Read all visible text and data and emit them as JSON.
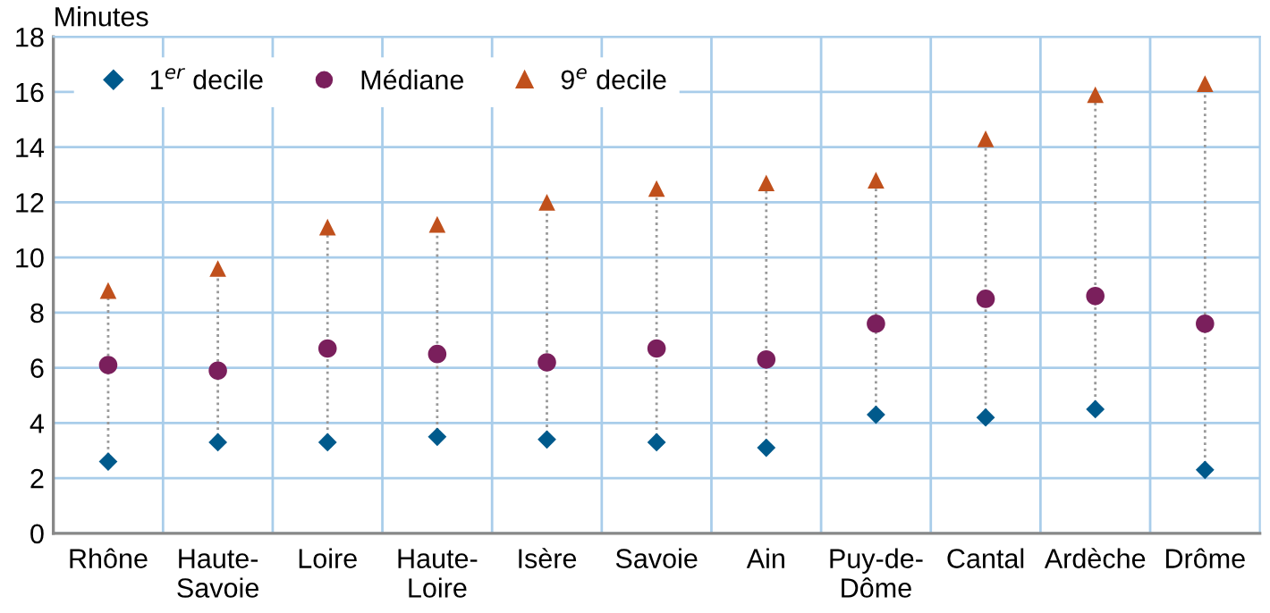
{
  "chart_data": {
    "type": "scatter",
    "ylabel": "Minutes",
    "categories": [
      "Rhône",
      "Haute-\nSavoie",
      "Loire",
      "Haute-\nLoire",
      "Isère",
      "Savoie",
      "Ain",
      "Puy-de-\nDôme",
      "Cantal",
      "Ardèche",
      "Drôme"
    ],
    "series": [
      {
        "name": "1$^{er}$ decile",
        "color": "#005a8c",
        "marker": "diamond",
        "values": [
          2.6,
          3.3,
          3.3,
          3.5,
          3.4,
          3.3,
          3.1,
          4.3,
          4.2,
          4.5,
          2.3
        ]
      },
      {
        "name": "Médiane",
        "color": "#7a1f5c",
        "marker": "circle",
        "values": [
          6.1,
          5.9,
          6.7,
          6.5,
          6.2,
          6.7,
          6.3,
          7.6,
          8.5,
          8.6,
          7.6
        ]
      },
      {
        "name": "9$^{e}$ decile",
        "color": "#c0501c",
        "marker": "triangle",
        "values": [
          8.8,
          9.6,
          11.1,
          11.2,
          12.0,
          12.5,
          12.7,
          12.8,
          14.3,
          15.9,
          16.3
        ]
      }
    ],
    "ylim": [
      0,
      18
    ],
    "yticks": [
      0,
      2,
      4,
      6,
      8,
      10,
      12,
      14,
      16,
      18
    ],
    "grid": true,
    "legend": "top left"
  }
}
